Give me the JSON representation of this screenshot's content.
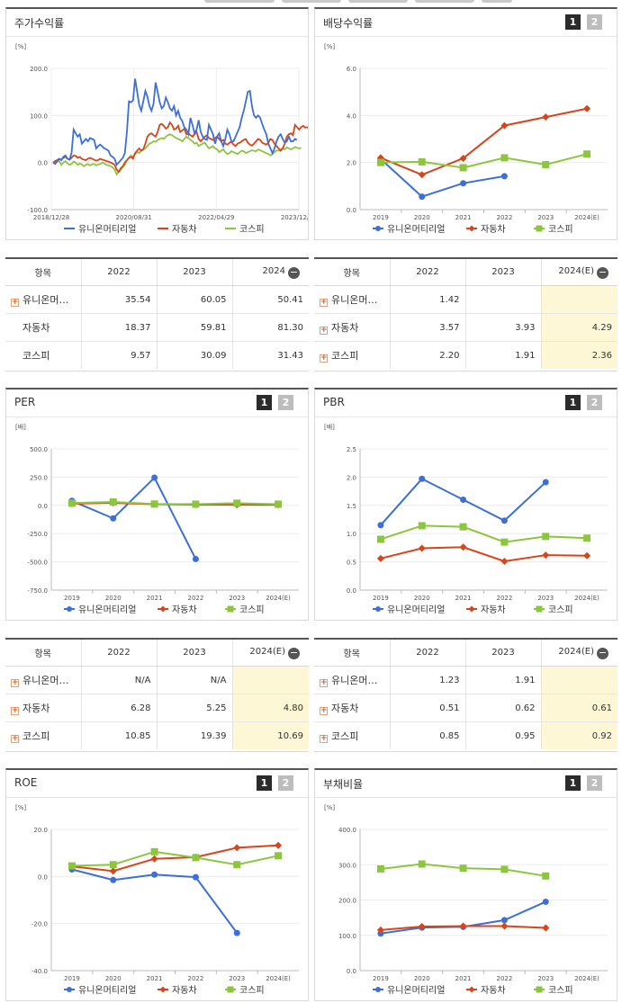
{
  "colors": {
    "series1": "#3c6fd8",
    "series2": "#d6451c",
    "series3": "#8cc63e",
    "estimate_bg": "#fdf7d6"
  },
  "pager": {
    "btn1": "1",
    "btn2": "2"
  },
  "icons": {
    "plus": "plus-box-icon",
    "minus": "minus-circle-icon"
  },
  "chart_data": [
    {
      "id": "price_return",
      "title": "주가수익률",
      "type": "line",
      "unit": "[%]",
      "ylim": [
        -100,
        200
      ],
      "yticks": [
        "200.0",
        "100.0",
        "0.0",
        "-100.0"
      ],
      "xticks": [
        "2018/12/28",
        "2020/08/31",
        "2022/04/29",
        "2023/12/28"
      ],
      "legend": [
        "유니온머티리얼",
        "자동차",
        "코스피"
      ],
      "legend_markers": false,
      "series": [
        {
          "name": "유니온머티리얼",
          "values": [
            0,
            -3,
            3,
            8,
            5,
            12,
            15,
            8,
            6,
            20,
            70,
            62,
            55,
            60,
            40,
            45,
            50,
            45,
            52,
            50,
            48,
            30,
            35,
            38,
            34,
            30,
            28,
            25,
            15,
            12,
            8,
            -5,
            0,
            5,
            10,
            20,
            65,
            130,
            128,
            132,
            178,
            150,
            122,
            110,
            130,
            152,
            140,
            120,
            110,
            125,
            170,
            150,
            128,
            115,
            120,
            138,
            128,
            115,
            110,
            120,
            100,
            110,
            95,
            88,
            75,
            70,
            60,
            95,
            80,
            62,
            70,
            90,
            65,
            55,
            50,
            48,
            80,
            70,
            60,
            40,
            55,
            62,
            45,
            35,
            50,
            70,
            60,
            45,
            45,
            55,
            65,
            75,
            95,
            110,
            130,
            150,
            152,
            120,
            100,
            95,
            100,
            95,
            82,
            70,
            60,
            40,
            30,
            20,
            30,
            45,
            55,
            60,
            50,
            42,
            45,
            55,
            45,
            45,
            50,
            48
          ]
        },
        {
          "name": "자동차",
          "values": [
            0,
            3,
            5,
            8,
            6,
            10,
            12,
            8,
            6,
            10,
            15,
            14,
            10,
            12,
            8,
            6,
            5,
            8,
            10,
            8,
            6,
            4,
            5,
            8,
            6,
            5,
            3,
            2,
            0,
            -2,
            -5,
            -15,
            -20,
            -12,
            -8,
            0,
            5,
            10,
            12,
            8,
            20,
            25,
            30,
            25,
            28,
            40,
            55,
            60,
            62,
            58,
            55,
            65,
            80,
            82,
            78,
            72,
            75,
            85,
            80,
            70,
            72,
            78,
            65,
            68,
            72,
            60,
            62,
            58,
            55,
            60,
            65,
            50,
            45,
            50,
            55,
            58,
            52,
            50,
            48,
            52,
            55,
            50,
            45,
            48,
            40,
            38,
            42,
            44,
            38,
            35,
            40,
            42,
            45,
            48,
            50,
            42,
            38,
            36,
            40,
            45,
            50,
            48,
            42,
            40,
            38,
            42,
            50,
            48,
            40,
            35,
            30,
            25,
            30,
            40,
            55,
            60,
            62,
            58,
            80,
            75,
            70,
            75,
            78,
            74,
            75,
            72
          ]
        },
        {
          "name": "코스피",
          "values": [
            0,
            -2,
            2,
            3,
            -5,
            0,
            3,
            -2,
            -5,
            -3,
            2,
            0,
            -5,
            -2,
            -4,
            -8,
            -5,
            -3,
            -6,
            -4,
            -3,
            -6,
            -4,
            -3,
            0,
            -2,
            -5,
            -6,
            -8,
            -10,
            -15,
            -25,
            -20,
            -15,
            -10,
            -5,
            5,
            10,
            15,
            12,
            18,
            22,
            20,
            25,
            28,
            30,
            35,
            40,
            42,
            45,
            44,
            48,
            50,
            52,
            50,
            55,
            58,
            60,
            58,
            55,
            52,
            50,
            48,
            45,
            50,
            55,
            52,
            48,
            45,
            40,
            42,
            35,
            38,
            40,
            42,
            36,
            30,
            32,
            35,
            30,
            28,
            22,
            25,
            28,
            22,
            18,
            20,
            24,
            22,
            20,
            18,
            22,
            25,
            24,
            20,
            22,
            24,
            26,
            25,
            24,
            28,
            26,
            24,
            22,
            20,
            18,
            15,
            18,
            22,
            26,
            25,
            28,
            30,
            28,
            32,
            30,
            28,
            30,
            33,
            31,
            30,
            31
          ]
        }
      ]
    },
    {
      "id": "dividend_yield",
      "title": "배당수익률",
      "type": "line",
      "unit": "[%]",
      "ylim": [
        0,
        6
      ],
      "yticks": [
        "6.0",
        "4.0",
        "2.0",
        "0.0"
      ],
      "categories": [
        "2019",
        "2020",
        "2021",
        "2022",
        "2023",
        "2024(E)"
      ],
      "legend": [
        "유니온머티리얼",
        "자동차",
        "코스피"
      ],
      "legend_markers": true,
      "series": [
        {
          "name": "유니온머티리얼",
          "values": [
            2.15,
            0.55,
            1.12,
            1.42,
            null,
            null
          ]
        },
        {
          "name": "자동차",
          "values": [
            2.2,
            1.48,
            2.18,
            3.57,
            3.93,
            4.29
          ]
        },
        {
          "name": "코스피",
          "values": [
            2.0,
            2.03,
            1.78,
            2.2,
            1.91,
            2.36
          ]
        }
      ]
    },
    {
      "id": "per",
      "title": "PER",
      "type": "line",
      "unit": "[배]",
      "ylim": [
        -750,
        500
      ],
      "yticks": [
        "500.0",
        "250.0",
        "0.0",
        "-250.0",
        "-500.0",
        "-750.0"
      ],
      "categories": [
        "2019",
        "2020",
        "2021",
        "2022",
        "2023",
        "2024(E)"
      ],
      "legend": [
        "유니온머티리얼",
        "자동차",
        "코스피"
      ],
      "legend_markers": true,
      "series": [
        {
          "name": "유니온머티리얼",
          "values": [
            40,
            -115,
            245,
            -475,
            null,
            null
          ]
        },
        {
          "name": "자동차",
          "values": [
            15,
            22,
            10,
            6.28,
            5.25,
            4.8
          ]
        },
        {
          "name": "코스피",
          "values": [
            20,
            30,
            12,
            10.85,
            19.39,
            10.69
          ]
        }
      ]
    },
    {
      "id": "pbr",
      "title": "PBR",
      "type": "line",
      "unit": "[배]",
      "ylim": [
        0,
        2.5
      ],
      "yticks": [
        "2.5",
        "2.0",
        "1.5",
        "1.0",
        "0.5",
        "0.0"
      ],
      "categories": [
        "2019",
        "2020",
        "2021",
        "2022",
        "2023",
        "2024(E)"
      ],
      "legend": [
        "유니온머티리얼",
        "자동차",
        "코스피"
      ],
      "legend_markers": true,
      "series": [
        {
          "name": "유니온머티리얼",
          "values": [
            1.15,
            1.97,
            1.6,
            1.23,
            1.91,
            null
          ]
        },
        {
          "name": "자동차",
          "values": [
            0.56,
            0.74,
            0.76,
            0.51,
            0.62,
            0.61
          ]
        },
        {
          "name": "코스피",
          "values": [
            0.9,
            1.14,
            1.12,
            0.85,
            0.95,
            0.92
          ]
        }
      ]
    },
    {
      "id": "roe",
      "title": "ROE",
      "type": "line",
      "unit": "[%]",
      "ylim": [
        -40,
        20
      ],
      "yticks": [
        "20.0",
        "0.0",
        "-20.0",
        "-40.0"
      ],
      "categories": [
        "2019",
        "2020",
        "2021",
        "2022",
        "2023",
        "2024(E)"
      ],
      "legend": [
        "유니온머티리얼",
        "자동차",
        "코스피"
      ],
      "legend_markers": true,
      "series": [
        {
          "name": "유니온머티리얼",
          "values": [
            3.0,
            -1.5,
            0.8,
            -0.3,
            -24.0,
            null
          ]
        },
        {
          "name": "자동차",
          "values": [
            4.3,
            2.3,
            7.5,
            8.2,
            12.2,
            13.2
          ]
        },
        {
          "name": "코스피",
          "values": [
            4.5,
            5.0,
            10.5,
            8.0,
            5.0,
            8.8
          ]
        }
      ]
    },
    {
      "id": "debt_ratio",
      "title": "부채비율",
      "type": "line",
      "unit": "[%]",
      "ylim": [
        0,
        400
      ],
      "yticks": [
        "400.0",
        "300.0",
        "200.0",
        "100.0",
        "0.0"
      ],
      "categories": [
        "2019",
        "2020",
        "2021",
        "2022",
        "2023",
        "2024(E)"
      ],
      "legend": [
        "유니온머티리얼",
        "자동차",
        "코스피"
      ],
      "legend_markers": true,
      "series": [
        {
          "name": "유니온머티리얼",
          "values": [
            105,
            122,
            124,
            143,
            195,
            null
          ]
        },
        {
          "name": "자동차",
          "values": [
            115,
            125,
            126,
            126,
            121,
            null
          ]
        },
        {
          "name": "코스피",
          "values": [
            288,
            302,
            290,
            287,
            268,
            null
          ]
        }
      ]
    }
  ],
  "tables": [
    {
      "id": "price_return_table",
      "headers": [
        "항목",
        "2022",
        "2023",
        "2024"
      ],
      "rows": [
        {
          "name": "유니온머…",
          "plus": true,
          "values": [
            "35.54",
            "60.05",
            "50.41"
          ]
        },
        {
          "name": "자동차",
          "plus": false,
          "values": [
            "18.37",
            "59.81",
            "81.30"
          ]
        },
        {
          "name": "코스피",
          "plus": false,
          "values": [
            "9.57",
            "30.09",
            "31.43"
          ]
        }
      ]
    },
    {
      "id": "dividend_table",
      "headers": [
        "항목",
        "2022",
        "2023",
        "2024(E)"
      ],
      "rows": [
        {
          "name": "유니온머…",
          "plus": true,
          "values": [
            "1.42",
            "",
            ""
          ]
        },
        {
          "name": "자동차",
          "plus": true,
          "values": [
            "3.57",
            "3.93",
            "4.29"
          ]
        },
        {
          "name": "코스피",
          "plus": true,
          "values": [
            "2.20",
            "1.91",
            "2.36"
          ]
        }
      ]
    },
    {
      "id": "per_table",
      "headers": [
        "항목",
        "2022",
        "2023",
        "2024(E)"
      ],
      "rows": [
        {
          "name": "유니온머…",
          "plus": true,
          "values": [
            "N/A",
            "N/A",
            ""
          ]
        },
        {
          "name": "자동차",
          "plus": true,
          "values": [
            "6.28",
            "5.25",
            "4.80"
          ]
        },
        {
          "name": "코스피",
          "plus": true,
          "values": [
            "10.85",
            "19.39",
            "10.69"
          ]
        }
      ]
    },
    {
      "id": "pbr_table",
      "headers": [
        "항목",
        "2022",
        "2023",
        "2024(E)"
      ],
      "rows": [
        {
          "name": "유니온머…",
          "plus": true,
          "values": [
            "1.23",
            "1.91",
            ""
          ]
        },
        {
          "name": "자동차",
          "plus": true,
          "values": [
            "0.51",
            "0.62",
            "0.61"
          ]
        },
        {
          "name": "코스피",
          "plus": true,
          "values": [
            "0.85",
            "0.95",
            "0.92"
          ]
        }
      ]
    }
  ]
}
